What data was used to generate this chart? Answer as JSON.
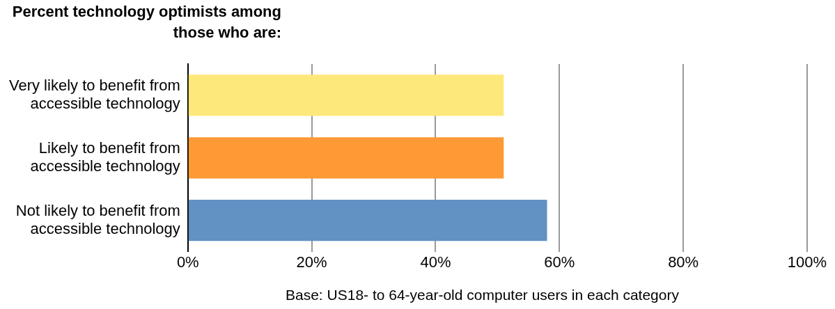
{
  "chart_data": {
    "type": "bar",
    "orientation": "horizontal",
    "title": "Percent technology optimists among those who are:",
    "categories": [
      "Very likely to benefit from accessible technology",
      "Likely to benefit from accessible technology",
      "Not likely to benefit from accessible technology"
    ],
    "values": [
      51,
      51,
      58
    ],
    "colors": [
      "#fde87a",
      "#fd9a35",
      "#6291c3"
    ],
    "xlim": [
      0,
      100
    ],
    "xticks": [
      {
        "value": 0,
        "label": "0%"
      },
      {
        "value": 20,
        "label": "20%"
      },
      {
        "value": 40,
        "label": "40%"
      },
      {
        "value": 60,
        "label": "60%"
      },
      {
        "value": 80,
        "label": "80%"
      },
      {
        "value": 100,
        "label": "100%"
      }
    ],
    "grid": "x",
    "legend": false,
    "annotations": [
      "Base: US18- to 64-year-old computer users in each category"
    ]
  }
}
